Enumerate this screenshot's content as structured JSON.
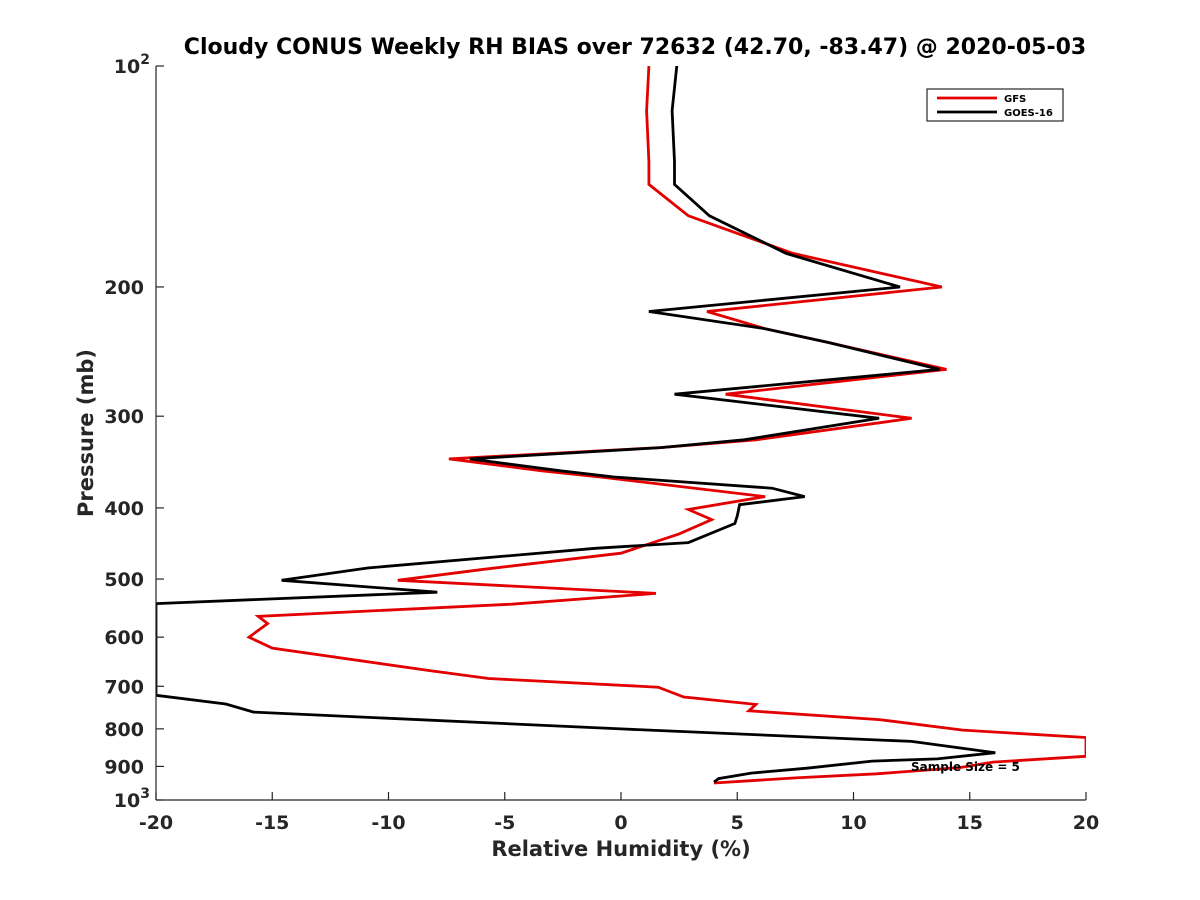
{
  "chart_data": {
    "type": "line",
    "title": "Cloudy CONUS Weekly RH BIAS over 72632 (42.70, -83.47) @ 2020-05-03",
    "xlabel": "Relative Humidity (%)",
    "ylabel": "Pressure (mb)",
    "xlim": [
      -20,
      20
    ],
    "ylim": [
      100,
      1000
    ],
    "y_scale": "log",
    "y_reversed": true,
    "grid": false,
    "legend_position": "top-right",
    "x_ticks": [
      "-20",
      "-15",
      "-10",
      "-5",
      "0",
      "5",
      "10",
      "15",
      "20"
    ],
    "y_ticks": [
      {
        "value": 100,
        "label": "10",
        "sup": "2"
      },
      {
        "value": 200,
        "label": "200",
        "sup": ""
      },
      {
        "value": 300,
        "label": "300",
        "sup": ""
      },
      {
        "value": 400,
        "label": "400",
        "sup": ""
      },
      {
        "value": 500,
        "label": "500",
        "sup": ""
      },
      {
        "value": 600,
        "label": "600",
        "sup": ""
      },
      {
        "value": 700,
        "label": "700",
        "sup": ""
      },
      {
        "value": 800,
        "label": "800",
        "sup": ""
      },
      {
        "value": 900,
        "label": "900",
        "sup": ""
      },
      {
        "value": 1000,
        "label": "10",
        "sup": "3"
      }
    ],
    "annotation": "Sample Size = 5",
    "series": [
      {
        "name": "GFS",
        "color": "#e30000",
        "points": [
          [
            1.2,
            100
          ],
          [
            1.1,
            115
          ],
          [
            1.2,
            135
          ],
          [
            1.2,
            145
          ],
          [
            2.9,
            160
          ],
          [
            7.4,
            180
          ],
          [
            13.8,
            200
          ],
          [
            3.7,
            216
          ],
          [
            6.2,
            228
          ],
          [
            8.9,
            238
          ],
          [
            14.0,
            259
          ],
          [
            4.5,
            280
          ],
          [
            12.5,
            302
          ],
          [
            5.8,
            323
          ],
          [
            1.7,
            331
          ],
          [
            -7.4,
            343
          ],
          [
            -3.4,
            356
          ],
          [
            -0.9,
            363
          ],
          [
            6.2,
            386
          ],
          [
            2.9,
            402
          ],
          [
            3.9,
            415
          ],
          [
            2.5,
            434
          ],
          [
            0.0,
            461
          ],
          [
            -5.9,
            485
          ],
          [
            -9.6,
            502
          ],
          [
            1.5,
            523
          ],
          [
            -4.7,
            541
          ],
          [
            -15.6,
            562
          ],
          [
            -15.2,
            575
          ],
          [
            -16.0,
            600
          ],
          [
            -15.0,
            621
          ],
          [
            -8.3,
            666
          ],
          [
            -5.7,
            683
          ],
          [
            1.6,
            702
          ],
          [
            2.7,
            724
          ],
          [
            5.8,
            741
          ],
          [
            5.5,
            756
          ],
          [
            11.1,
            777
          ],
          [
            14.7,
            803
          ],
          [
            20.0,
            822
          ],
          [
            20.0,
            872
          ],
          [
            16.0,
            888
          ],
          [
            14.6,
            903
          ],
          [
            11.0,
            921
          ],
          [
            7.5,
            933
          ],
          [
            4.0,
            948
          ]
        ]
      },
      {
        "name": "GOES-16",
        "color": "#000000",
        "points": [
          [
            2.4,
            100
          ],
          [
            2.2,
            115
          ],
          [
            2.3,
            135
          ],
          [
            2.3,
            145
          ],
          [
            3.8,
            160
          ],
          [
            7.1,
            180
          ],
          [
            12.0,
            200
          ],
          [
            1.2,
            216
          ],
          [
            6.2,
            228
          ],
          [
            8.9,
            238
          ],
          [
            13.7,
            259
          ],
          [
            2.3,
            280
          ],
          [
            11.1,
            302
          ],
          [
            5.3,
            323
          ],
          [
            1.7,
            331
          ],
          [
            -6.5,
            343
          ],
          [
            -2.6,
            356
          ],
          [
            -0.3,
            363
          ],
          [
            6.5,
            376
          ],
          [
            7.9,
            386
          ],
          [
            5.1,
            396
          ],
          [
            5.0,
            410
          ],
          [
            4.9,
            420
          ],
          [
            2.9,
            446
          ],
          [
            -1.1,
            454
          ],
          [
            -10.9,
            483
          ],
          [
            -14.6,
            502
          ],
          [
            -7.9,
            521
          ],
          [
            -20.0,
            540
          ],
          [
            -20.0,
            720
          ],
          [
            -17.0,
            740
          ],
          [
            -15.8,
            759
          ],
          [
            0.0,
            800
          ],
          [
            12.5,
            832
          ],
          [
            16.1,
            862
          ],
          [
            13.6,
            879
          ],
          [
            10.8,
            885
          ],
          [
            8.0,
            905
          ],
          [
            5.6,
            919
          ],
          [
            4.2,
            935
          ],
          [
            4.0,
            945
          ]
        ]
      }
    ]
  }
}
